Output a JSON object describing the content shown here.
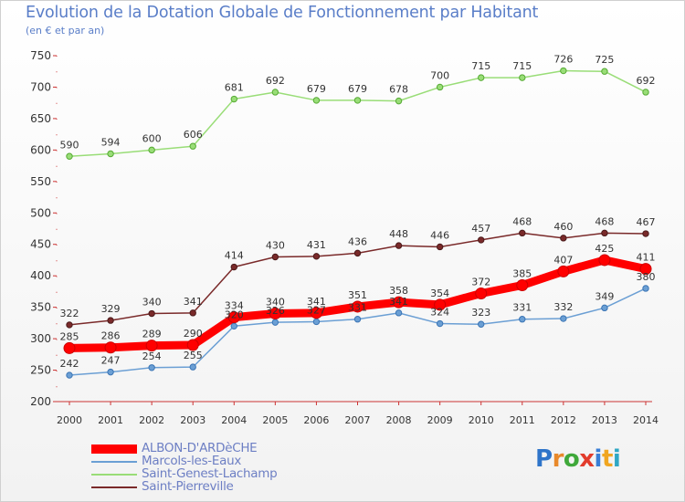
{
  "title": "Evolution de la Dotation Globale de Fonctionnement par Habitant",
  "subtitle": "(en € et par an)",
  "logo": {
    "text": "Proxiti"
  },
  "chart_data": {
    "type": "line",
    "title": "Evolution de la Dotation Globale de Fonctionnement par Habitant",
    "ylabel": "(en € et par an)",
    "xlabel": "",
    "x": [
      "2000",
      "2001",
      "2002",
      "2003",
      "2004",
      "2005",
      "2006",
      "2007",
      "2008",
      "2009",
      "2010",
      "2011",
      "2012",
      "2013",
      "2014"
    ],
    "yticks": [
      "200",
      "250",
      "300",
      "350",
      "400",
      "450",
      "500",
      "550",
      "600",
      "650",
      "700",
      "750"
    ],
    "ylim": [
      200,
      750
    ],
    "grid": false,
    "legend_position": "bottom-left",
    "series": [
      {
        "name": "ALBON-D'ARDèCHE",
        "color": "#ff0000",
        "values": [
          285,
          286,
          289,
          290,
          334,
          340,
          341,
          351,
          358,
          354,
          372,
          385,
          407,
          425,
          411
        ],
        "labels": [
          "285",
          "286",
          "289",
          "290",
          "334",
          "340",
          "341",
          "351",
          "358",
          "354",
          "372",
          "385",
          "407",
          "425",
          "411"
        ]
      },
      {
        "name": "Marcols-les-Eaux",
        "color": "#6b9fd4",
        "values": [
          242,
          247,
          254,
          255,
          320,
          326,
          327,
          331,
          341,
          324,
          323,
          331,
          332,
          349,
          380
        ],
        "labels": [
          "242",
          "247",
          "254",
          "255",
          "320",
          "326",
          "327",
          "331",
          "341",
          "324",
          "323",
          "331",
          "332",
          "349",
          "380"
        ]
      },
      {
        "name": "Saint-Genest-Lachamp",
        "color": "#99dd77",
        "values": [
          590,
          594,
          600,
          606,
          681,
          692,
          679,
          679,
          678,
          700,
          715,
          715,
          726,
          725,
          692
        ],
        "labels": [
          "590",
          "594",
          "600",
          "606",
          "681",
          "692",
          "679",
          "679",
          "678",
          "700",
          "715",
          "715",
          "726",
          "725",
          "692"
        ]
      },
      {
        "name": "Saint-Pierreville",
        "color": "#7a2a2a",
        "values": [
          322,
          329,
          340,
          341,
          414,
          430,
          431,
          436,
          448,
          446,
          457,
          468,
          460,
          468,
          467
        ],
        "labels": [
          "322",
          "329",
          "340",
          "341",
          "414",
          "430",
          "431",
          "436",
          "448",
          "446",
          "457",
          "468",
          "460",
          "468",
          "467"
        ]
      }
    ]
  }
}
